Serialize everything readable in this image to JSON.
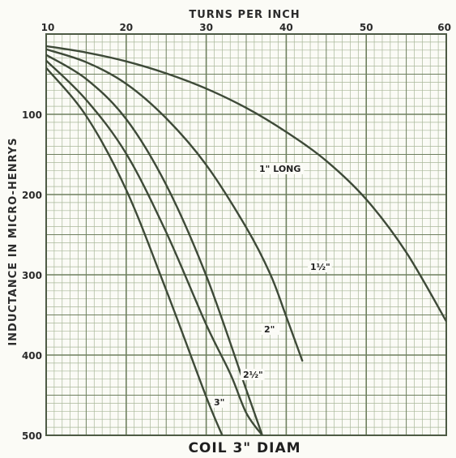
{
  "chart_data": {
    "type": "line",
    "title": "COIL 3\" DIAM",
    "xlabel": "TURNS PER INCH",
    "ylabel": "INDUCTANCE IN MICRO-HENRYS",
    "x_tick_labels": [
      "10",
      "20",
      "30",
      "40",
      "50",
      "60"
    ],
    "y_tick_labels": [
      "100",
      "200",
      "300",
      "400",
      "500"
    ],
    "x_ticks": [
      10,
      20,
      30,
      40,
      50,
      60
    ],
    "y_ticks": [
      100,
      200,
      300,
      400,
      500
    ],
    "xlim": [
      10,
      60
    ],
    "ylim": [
      0,
      500
    ],
    "y_inverted": true,
    "x_axis_position": "top",
    "grid": true,
    "colors": {
      "background": "#fbfbf6",
      "grid_major": "#6e7f5e",
      "grid_minor": "#a9b89a",
      "curve": "#3e4a38",
      "text": "#2b2b2b"
    },
    "series": [
      {
        "name": "1\" LONG",
        "x": [
          10,
          15,
          20,
          25,
          30,
          35,
          40,
          45,
          50,
          55,
          60
        ],
        "values": [
          15,
          23,
          34,
          49,
          68,
          92,
          122,
          158,
          206,
          272,
          358
        ]
      },
      {
        "name": "1½\"",
        "x": [
          10,
          15,
          20,
          25,
          30,
          35,
          38,
          40,
          42
        ],
        "values": [
          19,
          35,
          62,
          105,
          163,
          241,
          299,
          352,
          407
        ]
      },
      {
        "name": "2\"",
        "x": [
          10,
          15,
          20,
          25,
          30,
          35,
          37
        ],
        "values": [
          26,
          56,
          106,
          188,
          301,
          443,
          500
        ]
      },
      {
        "name": "2½\"",
        "x": [
          10,
          15,
          20,
          25,
          30,
          33,
          35,
          37
        ],
        "values": [
          33,
          82,
          149,
          247,
          362,
          423,
          472,
          500
        ]
      },
      {
        "name": "3\"",
        "x": [
          10,
          15,
          20,
          25,
          30,
          32
        ],
        "values": [
          42,
          102,
          194,
          319,
          452,
          500
        ]
      }
    ]
  }
}
